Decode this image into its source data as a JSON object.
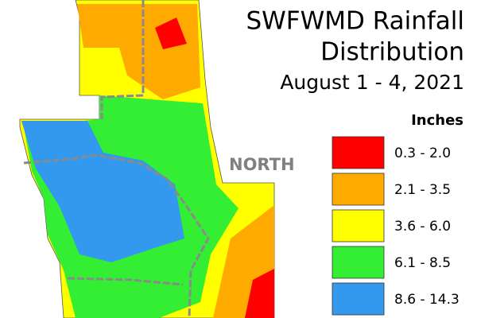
{
  "title": {
    "lines": [
      "SWFWMD Rainfall",
      "Distribution",
      "August 1 - 4, 2021"
    ]
  },
  "region_label": "NORTH",
  "legend": {
    "title": "Inches",
    "items": [
      {
        "label": "0.3 - 2.0",
        "color": "#ff0000"
      },
      {
        "label": "2.1 - 3.5",
        "color": "#ffaa00"
      },
      {
        "label": "3.6 - 6.0",
        "color": "#ffff00"
      },
      {
        "label": "6.1 - 8.5",
        "color": "#33ee33"
      },
      {
        "label": "8.6 - 14.3",
        "color": "#3399ee"
      }
    ]
  }
}
